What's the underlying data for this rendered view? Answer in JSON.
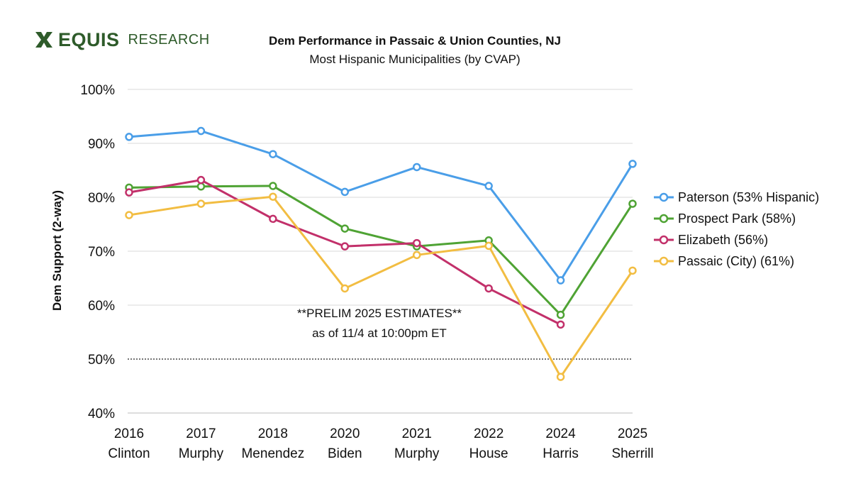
{
  "branding": {
    "logo_word": "EQUIS",
    "logo_sub": "RESEARCH",
    "brand_color": "#2e5b2a"
  },
  "chart_data": {
    "type": "line",
    "title": "Dem Performance in Passaic & Union Counties, NJ",
    "subtitle": "Most Hispanic Municipalities (by CVAP)",
    "ylabel": "Dem Support (2-way)",
    "xlabel": "",
    "ylim": [
      40,
      100
    ],
    "yticks": [
      40,
      50,
      60,
      70,
      80,
      90,
      100
    ],
    "ytick_labels": [
      "40%",
      "50%",
      "60%",
      "70%",
      "80%",
      "90%",
      "100%"
    ],
    "reference_line": 50,
    "categories": [
      [
        "2016",
        "Clinton"
      ],
      [
        "2017",
        "Murphy"
      ],
      [
        "2018",
        "Menendez"
      ],
      [
        "2020",
        "Biden"
      ],
      [
        "2021",
        "Murphy"
      ],
      [
        "2022",
        "House"
      ],
      [
        "2024",
        "Harris"
      ],
      [
        "2025",
        "Sherrill"
      ]
    ],
    "series": [
      {
        "name": "Paterson (53% Hispanic)",
        "color": "#4a9ee8",
        "values": [
          91.2,
          92.3,
          88.0,
          81.0,
          85.6,
          82.1,
          64.6,
          86.2
        ]
      },
      {
        "name": "Prospect Park (58%)",
        "color": "#4fa334",
        "values": [
          81.8,
          82.0,
          82.1,
          74.2,
          70.9,
          72.0,
          58.2,
          78.8
        ]
      },
      {
        "name": "Elizabeth (56%)",
        "color": "#c2306a",
        "values": [
          80.9,
          83.2,
          76.0,
          70.9,
          71.5,
          63.1,
          56.4,
          null
        ]
      },
      {
        "name": "Passaic (City) (61%)",
        "color": "#f2bd42",
        "values": [
          76.7,
          78.8,
          80.1,
          63.1,
          69.3,
          71.0,
          46.7,
          66.4
        ]
      }
    ],
    "annotation": [
      "**PRELIM 2025 ESTIMATES**",
      "as of 11/4 at 10:00pm ET"
    ],
    "legend_position": "right",
    "grid": true
  }
}
